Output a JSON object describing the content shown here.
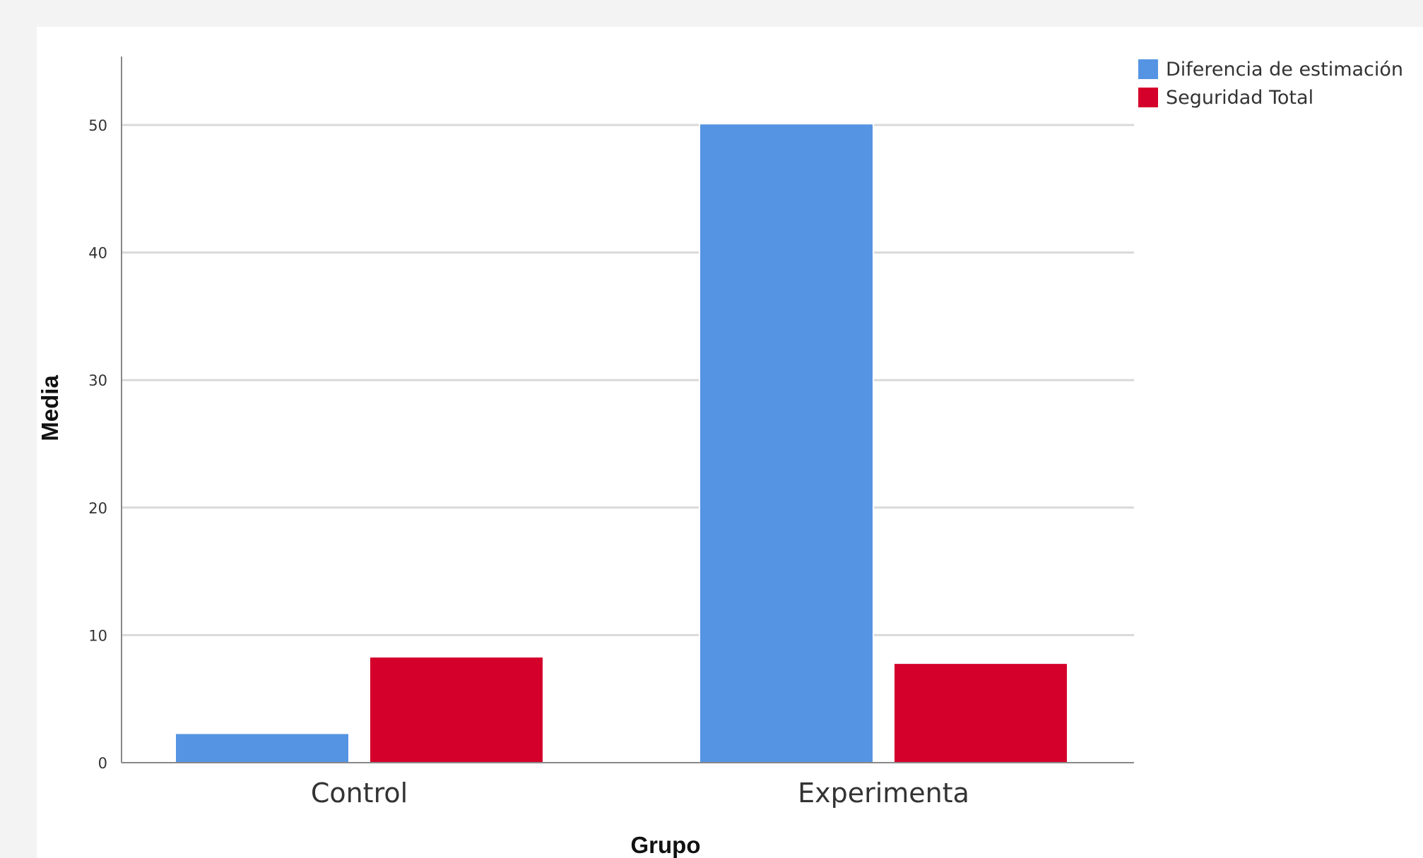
{
  "chart_data": {
    "type": "bar",
    "categories": [
      "Control",
      "Experimenta"
    ],
    "series": [
      {
        "name": "Diferencia de estimación",
        "values": [
          2.3,
          50.1
        ],
        "color": "#5594e2"
      },
      {
        "name": "Seguridad Total",
        "values": [
          8.3,
          7.8
        ],
        "color": "#d4002b"
      }
    ],
    "xlabel": "Grupo",
    "ylabel": "Media",
    "ylim": [
      0,
      55
    ],
    "yticks": [
      0,
      10,
      20,
      30,
      40,
      50
    ],
    "grid": true,
    "legend_position": "top-right"
  }
}
